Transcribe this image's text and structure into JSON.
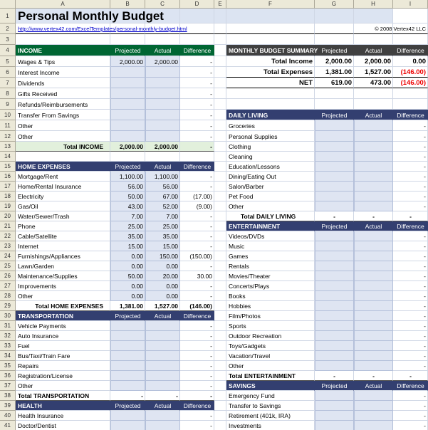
{
  "columns": [
    "A",
    "B",
    "C",
    "D",
    "E",
    "F",
    "G",
    "H",
    "I"
  ],
  "rows": [
    {
      "number": 1,
      "cells": {
        "A": "Personal Monthly Budget"
      }
    },
    {
      "number": 2,
      "cells": {
        "A": "http://www.vertex42.com/ExcelTemplates/personal-monthly-budget.html",
        "I": "© 2008 Vertex42 LLC"
      }
    },
    {
      "number": 3,
      "cells": {}
    },
    {
      "number": 4,
      "cells": {
        "A": "INCOME",
        "B": "Projected",
        "C": "Actual",
        "D": "Difference",
        "F": "MONTHLY BUDGET SUMMARY",
        "G": "Projected",
        "H": "Actual",
        "I": "Difference"
      }
    },
    {
      "number": 5,
      "cells": {
        "A": "Wages & Tips",
        "B": "2,000.00",
        "C": "2,000.00",
        "D": "-",
        "F": "Total Income",
        "G": "2,000.00",
        "H": "2,000.00",
        "I": "0.00"
      }
    },
    {
      "number": 6,
      "cells": {
        "A": "Interest Income",
        "D": "-",
        "F": "Total Expenses",
        "G": "1,381.00",
        "H": "1,527.00",
        "I": "(146.00)"
      }
    },
    {
      "number": 7,
      "cells": {
        "A": "Dividends",
        "D": "-",
        "F": "NET",
        "G": "619.00",
        "H": "473.00",
        "I": "(146.00)"
      }
    },
    {
      "number": 8,
      "cells": {
        "A": "Gifts Received",
        "D": "-"
      }
    },
    {
      "number": 9,
      "cells": {
        "A": "Refunds/Reimbursements",
        "D": "-"
      }
    },
    {
      "number": 10,
      "cells": {
        "A": "Transfer From Savings",
        "D": "-",
        "F": "DAILY LIVING",
        "G": "Projected",
        "H": "Actual",
        "I": "Difference"
      }
    },
    {
      "number": 11,
      "cells": {
        "A": "Other",
        "D": "-",
        "F": "Groceries",
        "I": "-"
      }
    },
    {
      "number": 12,
      "cells": {
        "A": "Other",
        "D": "-",
        "F": "Personal Supplies",
        "I": "-"
      }
    },
    {
      "number": 13,
      "cells": {
        "A": "Total INCOME",
        "B": "2,000.00",
        "C": "2,000.00",
        "D": "-",
        "F": "Clothing",
        "I": "-"
      }
    },
    {
      "number": 14,
      "cells": {
        "F": "Cleaning",
        "I": "-"
      }
    },
    {
      "number": 15,
      "cells": {
        "A": "HOME EXPENSES",
        "B": "Projected",
        "C": "Actual",
        "D": "Difference",
        "F": "Education/Lessons",
        "I": "-"
      }
    },
    {
      "number": 16,
      "cells": {
        "A": "Mortgage/Rent",
        "B": "1,100.00",
        "C": "1,100.00",
        "D": "-",
        "F": "Dining/Eating Out",
        "I": "-"
      }
    },
    {
      "number": 17,
      "cells": {
        "A": "Home/Rental Insurance",
        "B": "56.00",
        "C": "56.00",
        "D": "-",
        "F": "Salon/Barber",
        "I": "-"
      }
    },
    {
      "number": 18,
      "cells": {
        "A": "Electricity",
        "B": "50.00",
        "C": "67.00",
        "D": "(17.00)",
        "F": "Pet Food",
        "I": "-"
      }
    },
    {
      "number": 19,
      "cells": {
        "A": "Gas/Oil",
        "B": "43.00",
        "C": "52.00",
        "D": "(9.00)",
        "F": "Other",
        "I": "-"
      }
    },
    {
      "number": 20,
      "cells": {
        "A": "Water/Sewer/Trash",
        "B": "7.00",
        "C": "7.00",
        "D": "-",
        "F": "Total DAILY LIVING",
        "G": "-",
        "H": "-",
        "I": "-"
      }
    },
    {
      "number": 21,
      "cells": {
        "A": "Phone",
        "B": "25.00",
        "C": "25.00",
        "D": "-",
        "F": "ENTERTAINMENT",
        "G": "Projected",
        "H": "Actual",
        "I": "Difference"
      }
    },
    {
      "number": 22,
      "cells": {
        "A": "Cable/Satellite",
        "B": "35.00",
        "C": "35.00",
        "D": "-",
        "F": "Videos/DVDs",
        "I": "-"
      }
    },
    {
      "number": 23,
      "cells": {
        "A": "Internet",
        "B": "15.00",
        "C": "15.00",
        "D": "-",
        "F": "Music",
        "I": "-"
      }
    },
    {
      "number": 24,
      "cells": {
        "A": "Furnishings/Appliances",
        "B": "0.00",
        "C": "150.00",
        "D": "(150.00)",
        "F": "Games",
        "I": "-"
      }
    },
    {
      "number": 25,
      "cells": {
        "A": "Lawn/Garden",
        "B": "0.00",
        "C": "0.00",
        "D": "-",
        "F": "Rentals",
        "I": "-"
      }
    },
    {
      "number": 26,
      "cells": {
        "A": "Maintenance/Supplies",
        "B": "50.00",
        "C": "20.00",
        "D": "30.00",
        "F": "Movies/Theater",
        "I": "-"
      }
    },
    {
      "number": 27,
      "cells": {
        "A": "Improvements",
        "B": "0.00",
        "C": "0.00",
        "D": "-",
        "F": "Concerts/Plays",
        "I": "-"
      }
    },
    {
      "number": 28,
      "cells": {
        "A": "Other",
        "B": "0.00",
        "C": "0.00",
        "D": "-",
        "F": "Books",
        "I": "-"
      }
    },
    {
      "number": 29,
      "cells": {
        "A": "Total HOME EXPENSES",
        "B": "1,381.00",
        "C": "1,527.00",
        "D": "(146.00)",
        "F": "Hobbies",
        "I": "-"
      }
    },
    {
      "number": 30,
      "cells": {
        "A": "TRANSPORTATION",
        "B": "Projected",
        "C": "Actual",
        "D": "Difference",
        "F": "Film/Photos",
        "I": "-"
      }
    },
    {
      "number": 31,
      "cells": {
        "A": "Vehicle Payments",
        "D": "-",
        "F": "Sports",
        "I": "-"
      }
    },
    {
      "number": 32,
      "cells": {
        "A": "Auto Insurance",
        "D": "-",
        "F": "Outdoor Recreation",
        "I": "-"
      }
    },
    {
      "number": 33,
      "cells": {
        "A": "Fuel",
        "D": "-",
        "F": "Toys/Gadgets",
        "I": "-"
      }
    },
    {
      "number": 34,
      "cells": {
        "A": "Bus/Taxi/Train Fare",
        "D": "-",
        "F": "Vacation/Travel",
        "I": "-"
      }
    },
    {
      "number": 35,
      "cells": {
        "A": "Repairs",
        "D": "-",
        "F": "Other",
        "I": "-"
      }
    },
    {
      "number": 36,
      "cells": {
        "A": "Registration/License",
        "D": "-",
        "F": "Total ENTERTAINMENT",
        "G": "-",
        "H": "-",
        "I": "-"
      }
    },
    {
      "number": 37,
      "cells": {
        "A": "Other",
        "D": "-",
        "F": "SAVINGS",
        "G": "Projected",
        "H": "Actual",
        "I": "Difference"
      }
    },
    {
      "number": 38,
      "cells": {
        "A": "Total TRANSPORTATION",
        "B": "-",
        "C": "-",
        "D": "-",
        "F": "Emergency Fund",
        "I": "-"
      }
    },
    {
      "number": 39,
      "cells": {
        "A": "HEALTH",
        "B": "Projected",
        "C": "Actual",
        "D": "Difference",
        "F": "Transfer to Savings",
        "I": "-"
      }
    },
    {
      "number": 40,
      "cells": {
        "A": "Health Insurance",
        "D": "-",
        "F": "Retirement (401k, IRA)",
        "I": "-"
      }
    },
    {
      "number": 41,
      "cells": {
        "A": "Doctor/Dentist",
        "D": "-",
        "F": "Investments",
        "I": "-"
      }
    }
  ]
}
